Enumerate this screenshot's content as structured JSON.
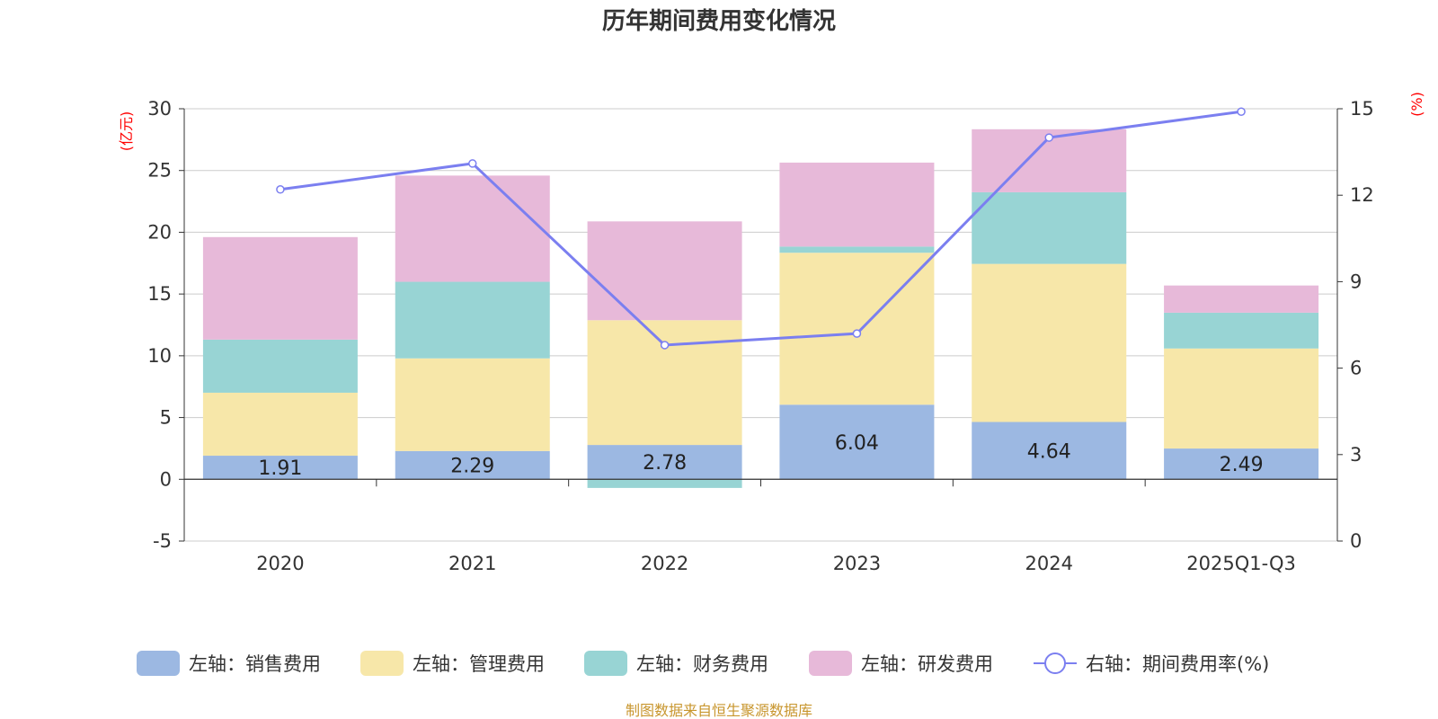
{
  "chart_data": {
    "type": "bar",
    "title": "历年期间费用变化情况",
    "categories": [
      "2020",
      "2021",
      "2022",
      "2023",
      "2024",
      "2025Q1-Q3"
    ],
    "series": [
      {
        "name": "左轴：销售费用",
        "axis": "left",
        "color": "#9cb8e2",
        "values": [
          1.91,
          2.29,
          2.78,
          6.04,
          4.64,
          2.49
        ],
        "labels": [
          "1.91",
          "2.29",
          "2.78",
          "6.04",
          "4.64",
          "2.49"
        ]
      },
      {
        "name": "左轴：管理费用",
        "axis": "left",
        "color": "#f7e7a9",
        "values": [
          5.1,
          7.5,
          10.1,
          12.3,
          12.8,
          8.1
        ]
      },
      {
        "name": "左轴：财务费用",
        "axis": "left",
        "color": "#98d4d4",
        "values": [
          4.3,
          6.2,
          -0.7,
          0.5,
          5.8,
          2.9
        ]
      },
      {
        "name": "左轴：研发费用",
        "axis": "left",
        "color": "#e7b9d9",
        "values": [
          8.3,
          8.6,
          8.0,
          6.8,
          5.1,
          2.2
        ]
      },
      {
        "name": "右轴：期间费用率(%)",
        "axis": "right",
        "type": "line",
        "color": "#7b7ff0",
        "values": [
          12.2,
          13.1,
          6.8,
          7.2,
          14.0,
          14.9
        ]
      }
    ],
    "left_axis": {
      "unit": "(亿元)",
      "min": -5,
      "max": 30,
      "ticks": [
        "30",
        "25",
        "20",
        "15",
        "10",
        "5",
        "0",
        "-5"
      ]
    },
    "right_axis": {
      "unit": "(%)",
      "min": 0,
      "max": 15,
      "ticks": [
        "15",
        "12",
        "9",
        "6",
        "3",
        "0"
      ]
    },
    "grid": true,
    "legend_position": "bottom"
  },
  "source": "制图数据来自恒生聚源数据库"
}
